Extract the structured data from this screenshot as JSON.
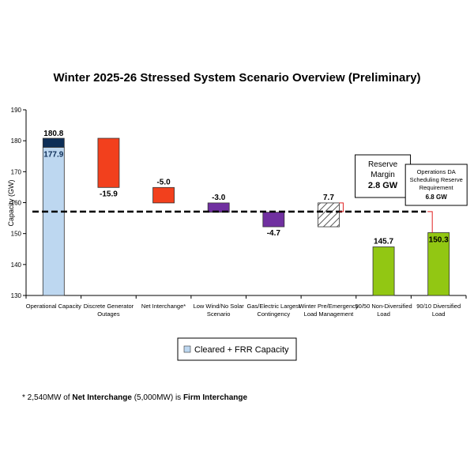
{
  "chart_data": {
    "type": "bar",
    "subtype": "waterfall",
    "title": "Winter 2025-26 Stressed System Scenario Overview (Preliminary)",
    "ylabel": "Capacity (GW)",
    "xlabel": "",
    "ylim": [
      130,
      190
    ],
    "yticks": [
      130,
      140,
      150,
      160,
      170,
      180,
      190
    ],
    "categories": [
      "Operational Capacity",
      "Discrete Generator Outages",
      "Net Interchange*",
      "Low Wind/No Solar Scenario",
      "Gas/Electric Largest Contingency",
      "Winter Pre/Emergency Load Management",
      "50/50 Non-Diversified Load",
      "90/10 Diversified Load"
    ],
    "category_lines": [
      [
        "Operational Capacity"
      ],
      [
        "Discrete Generator",
        "Outages"
      ],
      [
        "Net Interchange*"
      ],
      [
        "Low Wind/No Solar",
        "Scenario"
      ],
      [
        "Gas/Electric Largest",
        "Contingency"
      ],
      [
        "Winter Pre/Emergency",
        "Load Management"
      ],
      [
        "50/50 Non-Diversified",
        "Load"
      ],
      [
        "90/10 Diversified",
        "Load"
      ]
    ],
    "bars": [
      {
        "category": "Operational Capacity",
        "start": 130,
        "end": 177.9,
        "label": "177.9",
        "color": "#bdd7f0",
        "kind": "cleared_frr"
      },
      {
        "category": "Operational Capacity",
        "start": 177.9,
        "end": 180.8,
        "label": "180.8",
        "color": "#0d2e57",
        "kind": "cap"
      },
      {
        "category": "Discrete Generator Outages",
        "start": 180.8,
        "end": 164.9,
        "label": "-15.9",
        "color": "#f2401d",
        "kind": "decrease"
      },
      {
        "category": "Net Interchange*",
        "start": 164.9,
        "end": 159.9,
        "label": "-5.0",
        "color": "#f2401d",
        "kind": "decrease"
      },
      {
        "category": "Low Wind/No Solar Scenario",
        "start": 159.9,
        "end": 156.9,
        "label": "-3.0",
        "color": "#7030a0",
        "kind": "decrease"
      },
      {
        "category": "Gas/Electric Largest Contingency",
        "start": 156.9,
        "end": 152.2,
        "label": "-4.7",
        "color": "#7030a0",
        "kind": "decrease"
      },
      {
        "category": "Winter Pre/Emergency Load Management",
        "start": 152.2,
        "end": 159.9,
        "label": "7.7",
        "color": "hatch",
        "kind": "increase"
      },
      {
        "category": "50/50 Non-Diversified Load",
        "start": 130,
        "end": 145.7,
        "label": "145.7",
        "color": "#92c713",
        "kind": "load"
      },
      {
        "category": "90/10 Diversified Load",
        "start": 130,
        "end": 150.3,
        "label": "150.3",
        "color": "#92c713",
        "kind": "load"
      }
    ],
    "reference_line": {
      "value": 157.1,
      "style": "dashed"
    },
    "annotations": {
      "reserve_margin": {
        "line1": "Reserve",
        "line2": "Margin",
        "value": "2.8 GW"
      },
      "da_requirement": {
        "line1": "Operations DA",
        "line2": "Scheduling Reserve",
        "line3": "Requirement",
        "value": "6.8 GW"
      }
    },
    "legend": {
      "label": "Cleared + FRR Capacity",
      "color": "#bdd7f0",
      "position": "bottom-center"
    },
    "grid": false
  },
  "footnote": {
    "prefix": "* 2,540MW of ",
    "bold1": "Net Interchange",
    "middle": " (5,000MW) is ",
    "bold2": "Firm Interchange"
  }
}
